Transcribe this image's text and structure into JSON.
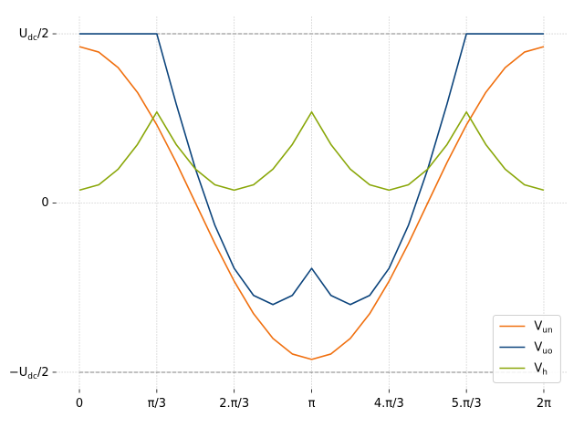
{
  "chart_data": {
    "type": "line",
    "x": [
      0,
      0.262,
      0.524,
      0.785,
      1.047,
      1.309,
      1.571,
      1.833,
      2.094,
      2.356,
      2.618,
      2.88,
      3.142,
      3.403,
      3.665,
      3.927,
      4.189,
      4.451,
      4.712,
      4.974,
      5.236,
      5.498,
      5.76,
      6.021,
      6.283
    ],
    "series": [
      {
        "name": "Vun",
        "color": "#f07010",
        "values": [
          0.462,
          0.446,
          0.4,
          0.327,
          0.231,
          0.12,
          0,
          -0.12,
          -0.231,
          -0.327,
          -0.4,
          -0.446,
          -0.462,
          -0.446,
          -0.4,
          -0.327,
          -0.231,
          -0.12,
          0,
          0.12,
          0.231,
          0.327,
          0.4,
          0.446,
          0.462
        ]
      },
      {
        "name": "Vuo",
        "color": "#0c447c",
        "values": [
          0.5,
          0.5,
          0.5,
          0.5,
          0.5,
          0.293,
          0.1,
          -0.066,
          -0.193,
          -0.273,
          -0.3,
          -0.273,
          -0.193,
          -0.273,
          -0.3,
          -0.273,
          -0.193,
          -0.066,
          0.1,
          0.293,
          0.5,
          0.5,
          0.5,
          0.5,
          0.5
        ]
      },
      {
        "name": "Vh",
        "color": "#8aa70a",
        "values": [
          0.038,
          0.054,
          0.1,
          0.173,
          0.269,
          0.173,
          0.1,
          0.054,
          0.038,
          0.054,
          0.1,
          0.173,
          0.269,
          0.173,
          0.1,
          0.054,
          0.038,
          0.054,
          0.1,
          0.173,
          0.269,
          0.173,
          0.1,
          0.054,
          0.038
        ]
      }
    ],
    "xlim": [
      -0.314,
      6.597
    ],
    "ylim": [
      -0.55,
      0.55
    ],
    "xticks": [
      0,
      {
        "value": 1.047,
        "label": "π/3"
      },
      {
        "value": 2.094,
        "label": "2.π/3"
      },
      {
        "value": 3.142,
        "label": "π"
      },
      {
        "value": 4.189,
        "label": "4.π/3"
      },
      {
        "value": 5.236,
        "label": "5.π/3"
      },
      {
        "value": 6.283,
        "label": "2π"
      }
    ],
    "yticks": [
      {
        "value": -0.5,
        "label": "−Udc/2"
      },
      0,
      {
        "value": 0.5,
        "label": "Udc/2"
      }
    ],
    "reference_lines": [
      0.5,
      -0.5
    ],
    "reference_color": "#808080",
    "grid": true,
    "legend": "lower right"
  }
}
